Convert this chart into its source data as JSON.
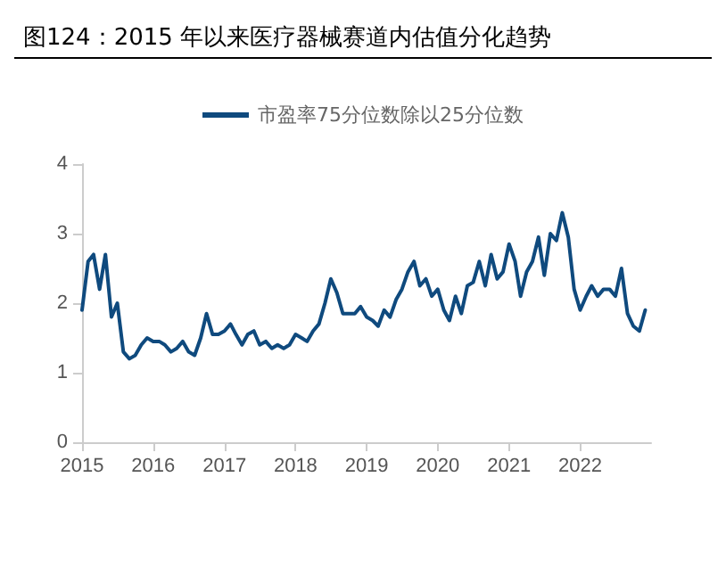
{
  "chart_data": {
    "type": "line",
    "title": "图124：2015 年以来医疗器械赛道内估值分化趋势",
    "x": [
      "2015-01",
      "2015-02",
      "2015-03",
      "2015-04",
      "2015-05",
      "2015-06",
      "2015-07",
      "2015-08",
      "2015-09",
      "2015-10",
      "2015-11",
      "2015-12",
      "2016-01",
      "2016-02",
      "2016-03",
      "2016-04",
      "2016-05",
      "2016-06",
      "2016-07",
      "2016-08",
      "2016-09",
      "2016-10",
      "2016-11",
      "2016-12",
      "2017-01",
      "2017-02",
      "2017-03",
      "2017-04",
      "2017-05",
      "2017-06",
      "2017-07",
      "2017-08",
      "2017-09",
      "2017-10",
      "2017-11",
      "2017-12",
      "2018-01",
      "2018-02",
      "2018-03",
      "2018-04",
      "2018-05",
      "2018-06",
      "2018-07",
      "2018-08",
      "2018-09",
      "2018-10",
      "2018-11",
      "2018-12",
      "2019-01",
      "2019-02",
      "2019-03",
      "2019-04",
      "2019-05",
      "2019-06",
      "2019-07",
      "2019-08",
      "2019-09",
      "2019-10",
      "2019-11",
      "2019-12",
      "2020-01",
      "2020-02",
      "2020-03",
      "2020-04",
      "2020-05",
      "2020-06",
      "2020-07",
      "2020-08",
      "2020-09",
      "2020-10",
      "2020-11",
      "2020-12",
      "2021-01",
      "2021-02",
      "2021-03",
      "2021-04",
      "2021-05",
      "2021-06",
      "2021-07",
      "2021-08",
      "2021-09",
      "2021-10",
      "2021-11",
      "2021-12",
      "2022-01",
      "2022-02",
      "2022-03",
      "2022-04",
      "2022-05",
      "2022-06",
      "2022-07",
      "2022-08",
      "2022-09",
      "2022-10",
      "2022-11",
      "2022-12"
    ],
    "series": [
      {
        "name": "市盈率75分位数除以25分位数",
        "color": "#0f4a7e",
        "values": [
          1.9,
          2.6,
          2.7,
          2.2,
          2.7,
          1.8,
          2.0,
          1.3,
          1.2,
          1.25,
          1.4,
          1.5,
          1.45,
          1.45,
          1.4,
          1.3,
          1.35,
          1.45,
          1.3,
          1.25,
          1.5,
          1.85,
          1.55,
          1.55,
          1.6,
          1.7,
          1.55,
          1.4,
          1.55,
          1.6,
          1.4,
          1.45,
          1.35,
          1.4,
          1.35,
          1.4,
          1.55,
          1.5,
          1.45,
          1.6,
          1.7,
          2.0,
          2.35,
          2.15,
          1.85,
          1.85,
          1.85,
          1.95,
          1.8,
          1.75,
          1.67,
          1.9,
          1.8,
          2.05,
          2.2,
          2.45,
          2.6,
          2.25,
          2.35,
          2.1,
          2.2,
          1.9,
          1.75,
          2.1,
          1.85,
          2.25,
          2.3,
          2.6,
          2.25,
          2.7,
          2.35,
          2.45,
          2.85,
          2.6,
          2.1,
          2.45,
          2.6,
          2.95,
          2.4,
          3.0,
          2.9,
          3.3,
          2.95,
          2.2,
          1.9,
          2.1,
          2.25,
          2.1,
          2.2,
          2.2,
          2.1,
          2.5,
          1.85,
          1.67,
          1.6,
          1.9
        ]
      }
    ],
    "xlim": [
      "2015-01-01",
      "2022-12-31"
    ],
    "xticks": [
      {
        "value": "2015-01-01",
        "label": "2015"
      },
      {
        "value": "2016-01-01",
        "label": "2016"
      },
      {
        "value": "2017-01-01",
        "label": "2017"
      },
      {
        "value": "2018-01-01",
        "label": "2018"
      },
      {
        "value": "2019-01-01",
        "label": "2019"
      },
      {
        "value": "2020-01-01",
        "label": "2020"
      },
      {
        "value": "2021-01-01",
        "label": "2021"
      },
      {
        "value": "2022-01-01",
        "label": "2022"
      }
    ],
    "ylim": [
      0,
      4
    ],
    "yticks": [
      0,
      1,
      2,
      3,
      4
    ],
    "legend": "top",
    "grid": false,
    "marker": "none",
    "line_style": "solid"
  }
}
